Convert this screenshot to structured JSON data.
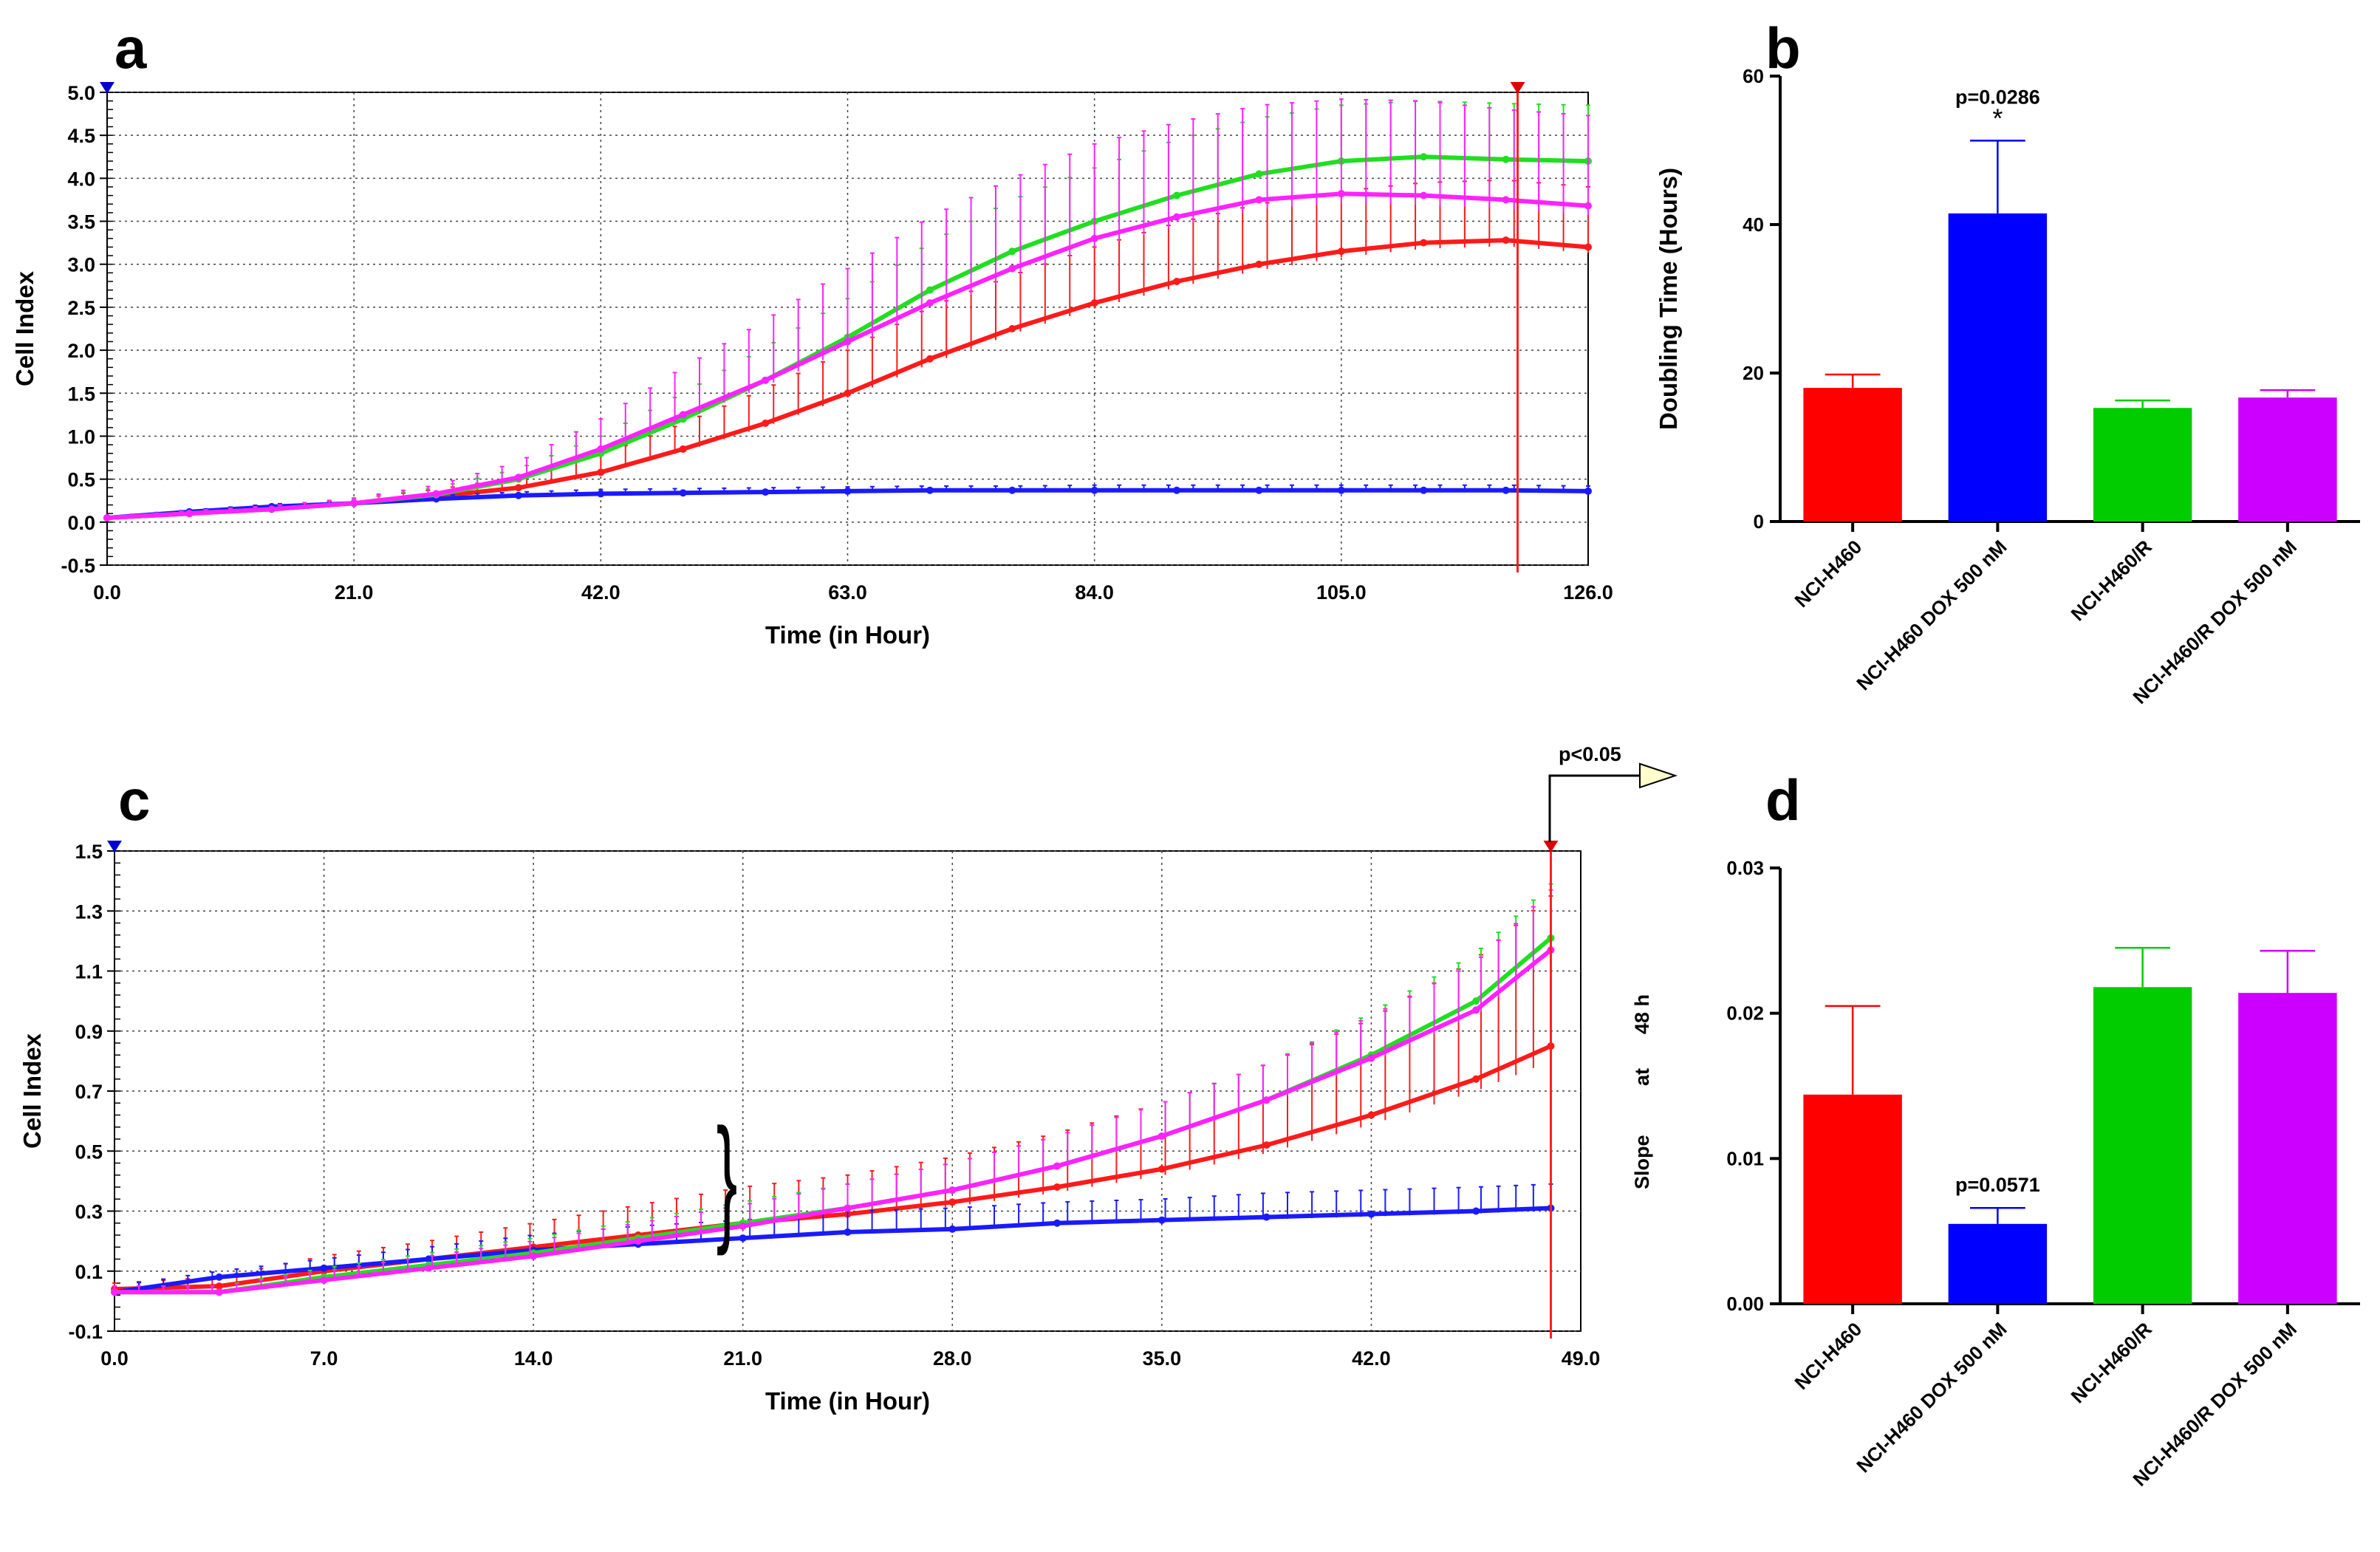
{
  "panels": {
    "a": "a",
    "b": "b",
    "c": "c",
    "d": "d"
  },
  "colors": {
    "red": "#ff1a1a",
    "blue": "#1a1aff",
    "green": "#22dd22",
    "magenta": "#ff22ff",
    "bar_red": "#ff0000",
    "bar_blue": "#0000ff",
    "bar_green": "#00cc00",
    "bar_magenta": "#cc00ff",
    "marker_line": "#ff2020"
  },
  "annotations": {
    "c_pvalue": "p<0.05",
    "c_slope": "Slope",
    "c_at": "at",
    "c_time": "48 h"
  },
  "chart_data": [
    {
      "panel": "a",
      "type": "line",
      "title": "",
      "xlabel": "Time (in Hour)",
      "ylabel": "Cell Index",
      "xlim": [
        0,
        126
      ],
      "ylim": [
        -0.5,
        5.0
      ],
      "xticks": [
        "0.0",
        "21.0",
        "42.0",
        "63.0",
        "84.0",
        "105.0",
        "126.0"
      ],
      "yticks": [
        "-0.5",
        "0.0",
        "0.5",
        "1.0",
        "1.5",
        "2.0",
        "2.5",
        "3.0",
        "3.5",
        "4.0",
        "4.5",
        "5.0"
      ],
      "grid": true,
      "marker_x": 120,
      "x": [
        0,
        7,
        14,
        21,
        28,
        35,
        42,
        49,
        56,
        63,
        70,
        77,
        84,
        91,
        98,
        105,
        112,
        119,
        126
      ],
      "series": [
        {
          "color": "red",
          "values": [
            0.05,
            0.1,
            0.15,
            0.22,
            0.3,
            0.4,
            0.58,
            0.85,
            1.15,
            1.5,
            1.9,
            2.25,
            2.55,
            2.8,
            3.0,
            3.15,
            3.25,
            3.28,
            3.2
          ],
          "err": [
            0.02,
            0.03,
            0.04,
            0.05,
            0.08,
            0.12,
            0.2,
            0.3,
            0.4,
            0.5,
            0.6,
            0.62,
            0.65,
            0.68,
            0.7,
            0.7,
            0.7,
            0.7,
            0.7
          ]
        },
        {
          "color": "blue",
          "values": [
            0.05,
            0.12,
            0.18,
            0.22,
            0.27,
            0.31,
            0.33,
            0.34,
            0.35,
            0.36,
            0.37,
            0.37,
            0.37,
            0.37,
            0.37,
            0.37,
            0.37,
            0.37,
            0.36
          ],
          "err": [
            0.02,
            0.02,
            0.03,
            0.03,
            0.04,
            0.04,
            0.05,
            0.05,
            0.05,
            0.05,
            0.05,
            0.05,
            0.06,
            0.06,
            0.06,
            0.06,
            0.06,
            0.06,
            0.06
          ]
        },
        {
          "color": "green",
          "values": [
            0.05,
            0.1,
            0.15,
            0.22,
            0.32,
            0.5,
            0.8,
            1.2,
            1.65,
            2.15,
            2.7,
            3.15,
            3.5,
            3.8,
            4.05,
            4.2,
            4.25,
            4.22,
            4.2
          ],
          "err": [
            0.02,
            0.03,
            0.04,
            0.05,
            0.08,
            0.12,
            0.2,
            0.3,
            0.38,
            0.45,
            0.55,
            0.6,
            0.62,
            0.65,
            0.65,
            0.65,
            0.65,
            0.65,
            0.65
          ]
        },
        {
          "color": "magenta",
          "values": [
            0.05,
            0.1,
            0.15,
            0.22,
            0.33,
            0.52,
            0.85,
            1.25,
            1.65,
            2.1,
            2.55,
            2.95,
            3.3,
            3.55,
            3.75,
            3.82,
            3.8,
            3.75,
            3.68
          ],
          "err": [
            0.02,
            0.03,
            0.04,
            0.06,
            0.1,
            0.18,
            0.35,
            0.55,
            0.7,
            0.85,
            1.0,
            1.05,
            1.1,
            1.1,
            1.1,
            1.1,
            1.1,
            1.05,
            1.05
          ]
        }
      ]
    },
    {
      "panel": "b",
      "type": "bar",
      "title": "",
      "xlabel": "",
      "ylabel": "Doubling Time (Hours)",
      "ylim": [
        0,
        60
      ],
      "yticks": [
        "0",
        "20",
        "40",
        "60"
      ],
      "categories": [
        "NCI-H460",
        "NCI-H460 DOX 500 nM",
        "NCI-H460/R",
        "NCI-H460/R DOX 500 nM"
      ],
      "values": [
        18,
        41.5,
        15.3,
        16.7
      ],
      "err": [
        1.8,
        9.8,
        1.0,
        1.0
      ],
      "bar_colors": [
        "bar_red",
        "bar_blue",
        "bar_green",
        "bar_magenta"
      ],
      "annotations": {
        "pvalue": "p=0.0286",
        "star": "*"
      }
    },
    {
      "panel": "c",
      "type": "line",
      "title": "",
      "xlabel": "Time (in Hour)",
      "ylabel": "Cell Index",
      "xlim": [
        0,
        49
      ],
      "ylim": [
        -0.1,
        1.5
      ],
      "xticks": [
        "0.0",
        "7.0",
        "14.0",
        "21.0",
        "28.0",
        "35.0",
        "42.0",
        "49.0"
      ],
      "yticks": [
        "-0.1",
        "0.1",
        "0.3",
        "0.5",
        "0.7",
        "0.9",
        "1.1",
        "1.3",
        "1.5"
      ],
      "grid": true,
      "marker_x": 48,
      "x": [
        0,
        3.5,
        7,
        10.5,
        14,
        17.5,
        21,
        24.5,
        28,
        31.5,
        35,
        38.5,
        42,
        45.5,
        48
      ],
      "series": [
        {
          "color": "red",
          "values": [
            0.04,
            0.05,
            0.1,
            0.14,
            0.18,
            0.22,
            0.26,
            0.29,
            0.33,
            0.38,
            0.44,
            0.52,
            0.62,
            0.74,
            0.85
          ],
          "err": [
            0.02,
            0.03,
            0.05,
            0.06,
            0.08,
            0.1,
            0.12,
            0.13,
            0.15,
            0.18,
            0.22,
            0.27,
            0.32,
            0.4,
            0.5
          ]
        },
        {
          "color": "blue",
          "values": [
            0.03,
            0.08,
            0.11,
            0.14,
            0.17,
            0.19,
            0.21,
            0.23,
            0.24,
            0.26,
            0.27,
            0.28,
            0.29,
            0.3,
            0.31
          ],
          "err": [
            0.02,
            0.02,
            0.03,
            0.04,
            0.05,
            0.06,
            0.06,
            0.07,
            0.07,
            0.07,
            0.07,
            0.08,
            0.08,
            0.08,
            0.08
          ]
        },
        {
          "color": "green",
          "values": [
            0.03,
            0.03,
            0.08,
            0.12,
            0.16,
            0.21,
            0.26,
            0.31,
            0.37,
            0.45,
            0.55,
            0.67,
            0.82,
            1.0,
            1.21
          ],
          "err": [
            0.02,
            0.02,
            0.03,
            0.04,
            0.05,
            0.06,
            0.07,
            0.08,
            0.09,
            0.1,
            0.11,
            0.12,
            0.14,
            0.16,
            0.18
          ]
        },
        {
          "color": "magenta",
          "values": [
            0.03,
            0.03,
            0.07,
            0.11,
            0.15,
            0.2,
            0.25,
            0.31,
            0.37,
            0.45,
            0.55,
            0.67,
            0.81,
            0.97,
            1.17
          ],
          "err": [
            0.02,
            0.02,
            0.03,
            0.04,
            0.05,
            0.06,
            0.07,
            0.08,
            0.09,
            0.1,
            0.11,
            0.12,
            0.14,
            0.16,
            0.2
          ]
        }
      ]
    },
    {
      "panel": "d",
      "type": "bar",
      "title": "",
      "xlabel": "",
      "ylabel": "",
      "ylim": [
        0,
        0.03
      ],
      "yticks": [
        "0.00",
        "0.01",
        "0.02",
        "0.03"
      ],
      "categories": [
        "NCI-H460",
        "NCI-H460 DOX 500 nM",
        "NCI-H460/R",
        "NCI-H460/R DOX 500 nM"
      ],
      "values": [
        0.0144,
        0.0055,
        0.0218,
        0.0214
      ],
      "err": [
        0.0061,
        0.0011,
        0.0027,
        0.0029
      ],
      "bar_colors": [
        "bar_red",
        "bar_blue",
        "bar_green",
        "bar_magenta"
      ],
      "annotations": {
        "pvalue": "p=0.0571"
      }
    }
  ]
}
